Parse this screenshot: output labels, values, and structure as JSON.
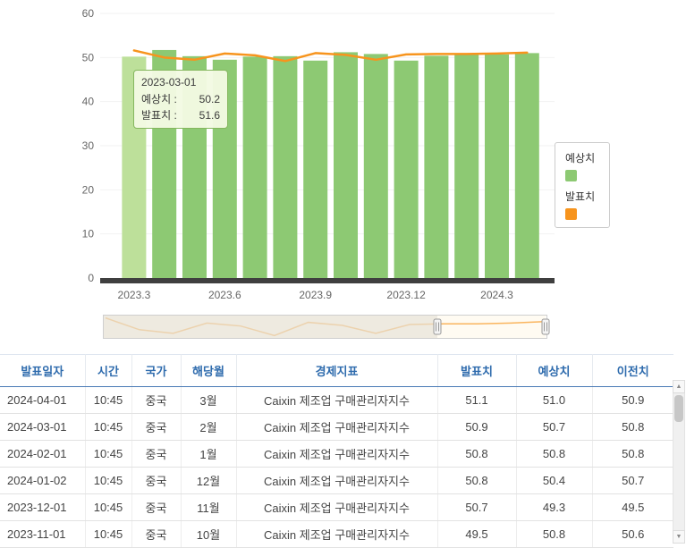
{
  "chart": {
    "y_ticks": [
      0,
      10,
      20,
      30,
      40,
      50,
      60
    ],
    "x_ticks": [
      {
        "index": 0,
        "label": "2023.3"
      },
      {
        "index": 3,
        "label": "2023.6"
      },
      {
        "index": 6,
        "label": "2023.9"
      },
      {
        "index": 9,
        "label": "2023.12"
      },
      {
        "index": 12,
        "label": "2024.3"
      }
    ],
    "hovered_index": 0,
    "hover_color": "#bde09a",
    "tooltip": {
      "title": "2023-03-01",
      "rows": [
        {
          "label": "예상치 :",
          "value": "50.2"
        },
        {
          "label": "발표치 :",
          "value": "51.6"
        }
      ]
    },
    "legend": [
      {
        "label": "예상치",
        "color": "#8dc973"
      },
      {
        "label": "발표치",
        "color": "#f7941d"
      }
    ]
  },
  "chart_data": {
    "type": "bar",
    "title": "",
    "categories": [
      "2023-03",
      "2023-04",
      "2023-05",
      "2023-06",
      "2023-07",
      "2023-08",
      "2023-09",
      "2023-10",
      "2023-11",
      "2023-12",
      "2024-01",
      "2024-02",
      "2024-03",
      "2024-04"
    ],
    "series": [
      {
        "name": "예상치",
        "type": "bar",
        "color": "#8dc973",
        "values": [
          50.2,
          51.7,
          50.3,
          49.5,
          50.2,
          50.3,
          49.3,
          51.2,
          50.8,
          49.3,
          50.4,
          50.8,
          50.7,
          51.0
        ]
      },
      {
        "name": "발표치",
        "type": "line",
        "color": "#f7941d",
        "values": [
          51.6,
          50.0,
          49.5,
          50.9,
          50.5,
          49.2,
          51.0,
          50.6,
          49.5,
          50.7,
          50.8,
          50.8,
          50.9,
          51.1
        ]
      }
    ],
    "xlabel": "",
    "ylabel": "",
    "ylim": [
      0,
      60
    ],
    "grid": false,
    "legend_position": "right"
  },
  "table": {
    "headers": [
      "발표일자",
      "시간",
      "국가",
      "해당월",
      "경제지표",
      "발표치",
      "예상치",
      "이전치"
    ],
    "rows": [
      [
        "2024-04-01",
        "10:45",
        "중국",
        "3월",
        "Caixin 제조업 구매관리자지수",
        "51.1",
        "51.0",
        "50.9"
      ],
      [
        "2024-03-01",
        "10:45",
        "중국",
        "2월",
        "Caixin 제조업 구매관리자지수",
        "50.9",
        "50.7",
        "50.8"
      ],
      [
        "2024-02-01",
        "10:45",
        "중국",
        "1월",
        "Caixin 제조업 구매관리자지수",
        "50.8",
        "50.8",
        "50.8"
      ],
      [
        "2024-01-02",
        "10:45",
        "중국",
        "12월",
        "Caixin 제조업 구매관리자지수",
        "50.8",
        "50.4",
        "50.7"
      ],
      [
        "2023-12-01",
        "10:45",
        "중국",
        "11월",
        "Caixin 제조업 구매관리자지수",
        "50.7",
        "49.3",
        "49.5"
      ],
      [
        "2023-11-01",
        "10:45",
        "중국",
        "10월",
        "Caixin 제조업 구매관리자지수",
        "49.5",
        "50.8",
        "50.6"
      ]
    ]
  },
  "scrollbar": {
    "up_icon": "▲",
    "down_icon": "▼"
  }
}
